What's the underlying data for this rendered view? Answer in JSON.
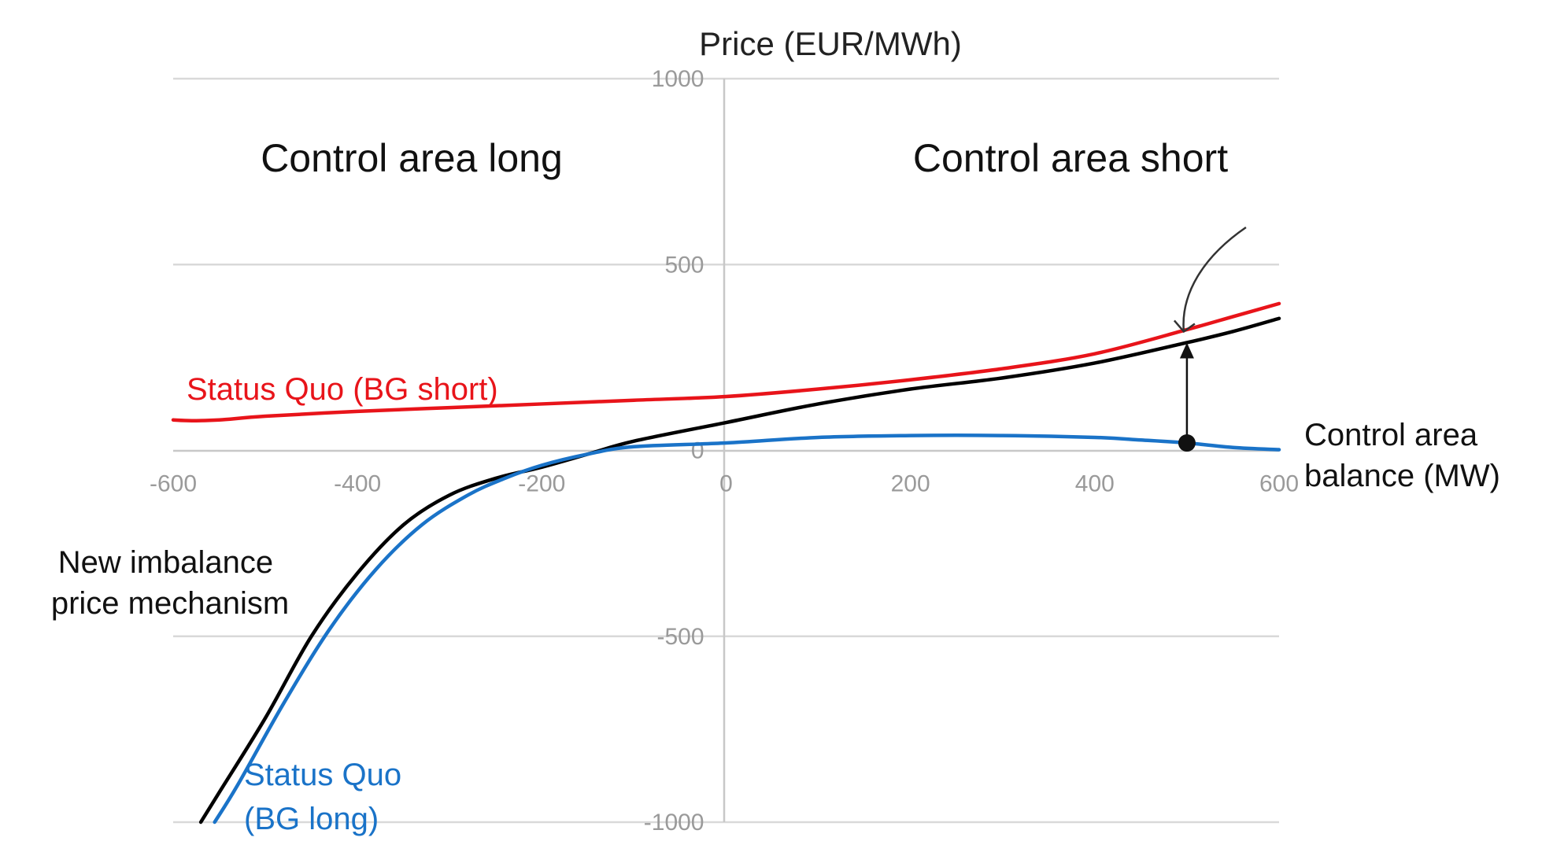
{
  "chart_data": {
    "type": "line",
    "title": "",
    "ylabel": "Price (EUR/MWh)",
    "xlabel": "Control area balance (MW)",
    "xlim": [
      -600,
      600
    ],
    "ylim": [
      -1000,
      1000
    ],
    "x_ticks": [
      -600,
      -400,
      -200,
      0,
      200,
      400,
      600
    ],
    "y_ticks": [
      1000,
      500,
      0,
      -500,
      -1000
    ],
    "grid": true,
    "regions": [
      {
        "label": "Control area long"
      },
      {
        "label": "Control area short"
      }
    ],
    "series": [
      {
        "name": "Status Quo (BG short)",
        "color": "#e8141a",
        "x": [
          -600,
          -580,
          -550,
          -500,
          -400,
          -300,
          -200,
          -100,
          0,
          100,
          200,
          300,
          400,
          500,
          550,
          600
        ],
        "y": [
          82,
          80,
          82,
          92,
          105,
          115,
          125,
          135,
          145,
          165,
          190,
          220,
          260,
          325,
          360,
          395
        ]
      },
      {
        "name": "New imbalance price mechanism",
        "color": "#000000",
        "x": [
          -570,
          -550,
          -500,
          -450,
          -400,
          -350,
          -300,
          -250,
          -200,
          -150,
          -100,
          0,
          100,
          200,
          300,
          400,
          500,
          550,
          600
        ],
        "y": [
          -1000,
          -920,
          -720,
          -500,
          -330,
          -200,
          -120,
          -75,
          -45,
          -10,
          25,
          75,
          125,
          165,
          195,
          235,
          290,
          320,
          355
        ]
      },
      {
        "name": "Status Quo (BG long)",
        "color": "#1a73c8",
        "x": [
          -555,
          -530,
          -480,
          -430,
          -380,
          -330,
          -280,
          -240,
          -200,
          -150,
          -100,
          0,
          100,
          200,
          300,
          400,
          450,
          500,
          550,
          600
        ],
        "y": [
          -1000,
          -900,
          -680,
          -480,
          -320,
          -200,
          -120,
          -75,
          -40,
          -10,
          10,
          20,
          35,
          40,
          40,
          35,
          28,
          20,
          8,
          2
        ]
      }
    ],
    "marker": {
      "x": 500,
      "y_from": 20,
      "y_to": 290
    }
  }
}
